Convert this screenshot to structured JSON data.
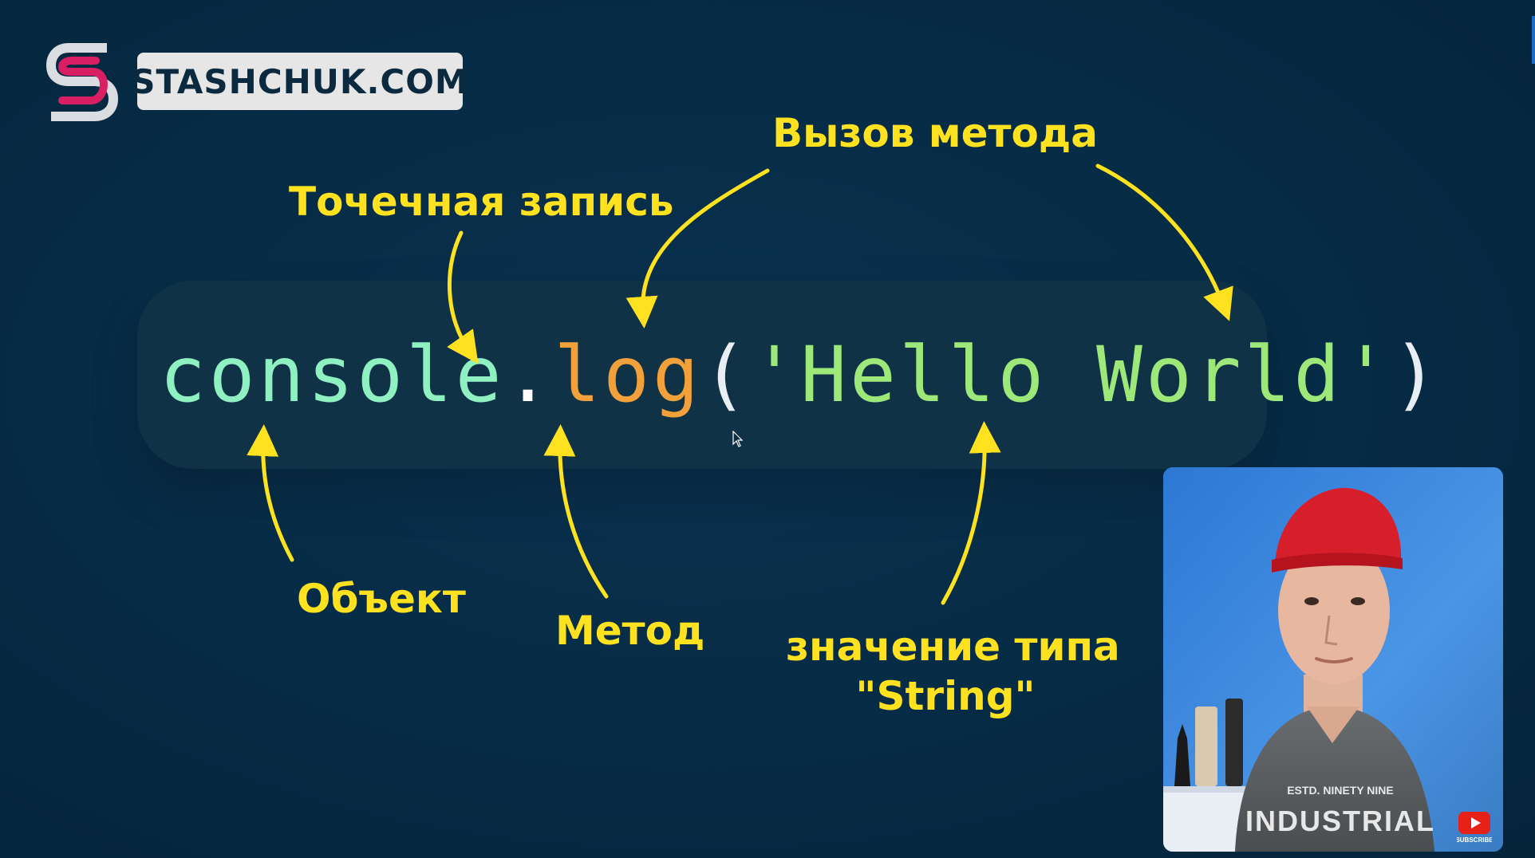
{
  "brand": {
    "logo_letter": "S",
    "site": "STASHCHUK.COM"
  },
  "code": {
    "object": "console",
    "dot": ".",
    "method": "log",
    "open_paren": "(",
    "string": "'Hello World'",
    "close_paren": ")"
  },
  "annotations": {
    "method_call": "Вызов метода",
    "dot_notation": "Точечная запись",
    "object": "Объект",
    "method": "Метод",
    "value_type_line1": "значение типа",
    "value_type_line2": "\"String\""
  },
  "colors": {
    "background": "#052a43",
    "annotation": "#ffe21f",
    "object_token": "#8ff0c2",
    "method_token": "#f2a13a",
    "string_token": "#9ee87a"
  },
  "webcam": {
    "shirt_line1": "ESTD. NINETY NINE",
    "shirt_line2": "INDUSTRIAL",
    "subscribe_label": "SUBSCRIBE"
  }
}
